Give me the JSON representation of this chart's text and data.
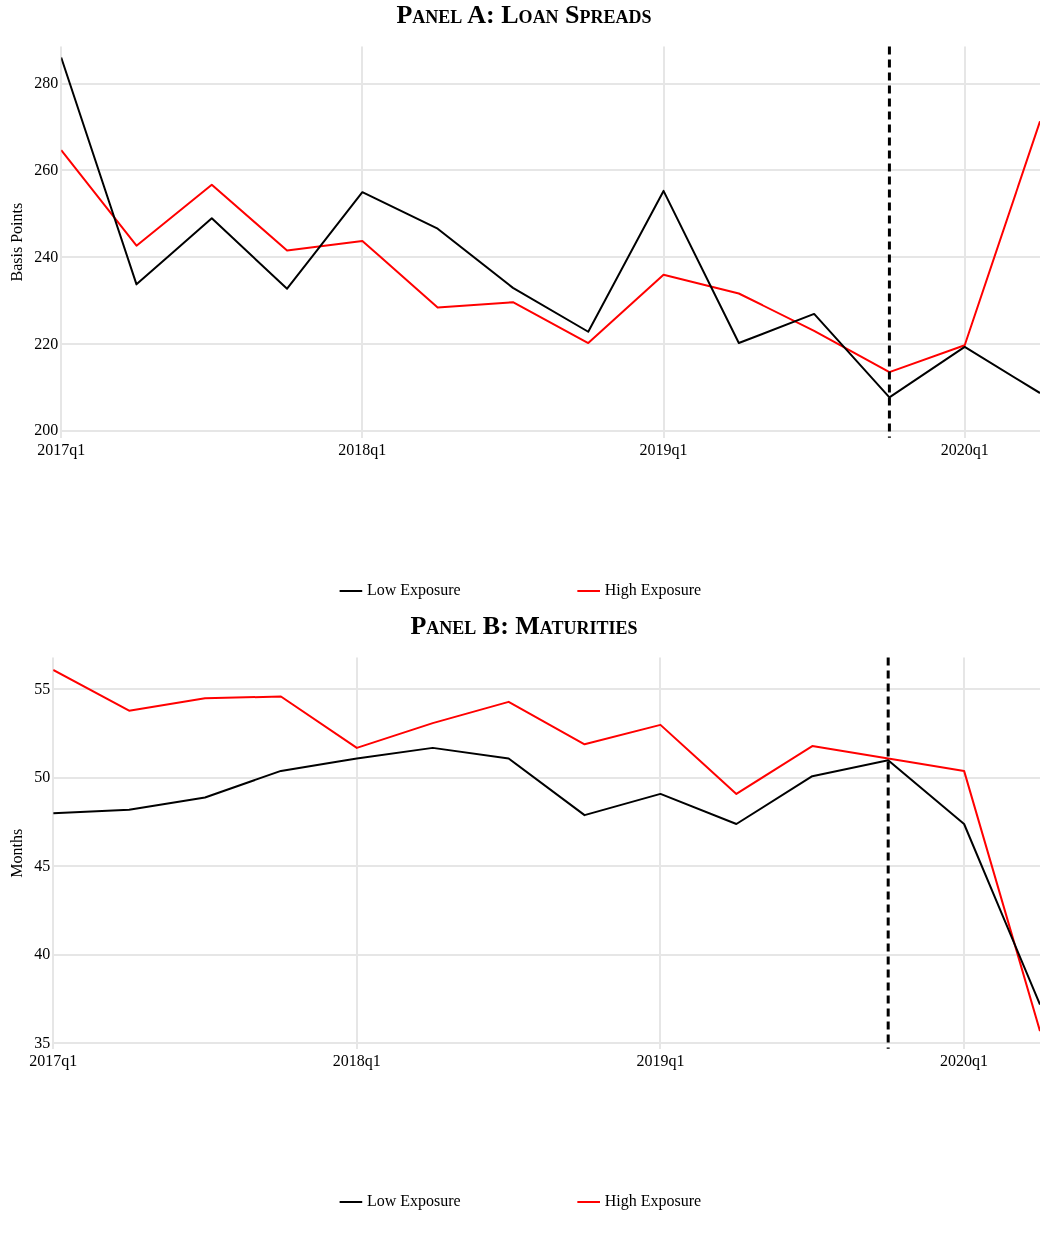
{
  "chart_data": [
    {
      "type": "line",
      "title": "Panel A: Loan Spreads",
      "ylabel": "Basis Points",
      "x": [
        "2017-01",
        "2017-04",
        "2017-07",
        "2017-10",
        "2018-01",
        "2018-04",
        "2018-07",
        "2018-10",
        "2019-01",
        "2019-04",
        "2019-07",
        "2019-10",
        "2020-01",
        "2020-04"
      ],
      "series": [
        {
          "name": "Low Exposure",
          "color": "#000000",
          "values": [
            286,
            233.8,
            249,
            232.8,
            255,
            246.6,
            233,
            222.9,
            255.3,
            220.3,
            227,
            207.8,
            219.4,
            208.8
          ]
        },
        {
          "name": "High Exposure",
          "color": "#ff0000",
          "values": [
            264.7,
            242.7,
            256.7,
            241.6,
            243.8,
            228.5,
            229.7,
            220.3,
            236,
            231.7,
            223.1,
            213.6,
            219.8,
            271.3
          ]
        }
      ],
      "xlim": [
        "2017-01",
        "2020-04"
      ],
      "xticks": [
        {
          "value": "2017-01",
          "label": "2017q1"
        },
        {
          "value": "2018-01",
          "label": "2018q1"
        },
        {
          "value": "2019-01",
          "label": "2019q1"
        },
        {
          "value": "2020-01",
          "label": "2020q1"
        }
      ],
      "ylim": [
        198.5,
        288.5
      ],
      "yticks": [
        200,
        220,
        240,
        260,
        280
      ],
      "ref_lines": [
        {
          "axis": "x",
          "value": "2019-10",
          "color": "#000000",
          "line_style": "dashed"
        }
      ],
      "grid": true,
      "legend": "bottom",
      "marker": "none",
      "line_style": "solid"
    },
    {
      "type": "line",
      "title": "Panel B: Maturities",
      "ylabel": "Months",
      "x": [
        "2017-01",
        "2017-04",
        "2017-07",
        "2017-10",
        "2018-01",
        "2018-04",
        "2018-07",
        "2018-10",
        "2019-01",
        "2019-04",
        "2019-07",
        "2019-10",
        "2020-01",
        "2020-04"
      ],
      "series": [
        {
          "name": "Low Exposure",
          "color": "#000000",
          "values": [
            48,
            48.2,
            48.9,
            50.4,
            51.1,
            51.7,
            51.1,
            47.9,
            49.1,
            47.4,
            50.1,
            51,
            47.4,
            37.2
          ]
        },
        {
          "name": "High Exposure",
          "color": "#ff0000",
          "values": [
            56.1,
            53.8,
            54.5,
            54.6,
            51.7,
            53.1,
            54.3,
            51.9,
            53,
            49.1,
            51.8,
            51.1,
            50.4,
            35.7
          ]
        }
      ],
      "xlim": [
        "2017-01",
        "2020-04"
      ],
      "xticks": [
        {
          "value": "2017-01",
          "label": "2017q1"
        },
        {
          "value": "2018-01",
          "label": "2018q1"
        },
        {
          "value": "2019-01",
          "label": "2019q1"
        },
        {
          "value": "2020-01",
          "label": "2020q1"
        }
      ],
      "ylim": [
        34.7,
        56.8
      ],
      "yticks": [
        35,
        40,
        45,
        50,
        55
      ],
      "ref_lines": [
        {
          "axis": "x",
          "value": "2019-10",
          "color": "#000000",
          "line_style": "dashed"
        }
      ],
      "grid": true,
      "legend": "bottom",
      "marker": "none",
      "line_style": "solid"
    }
  ]
}
